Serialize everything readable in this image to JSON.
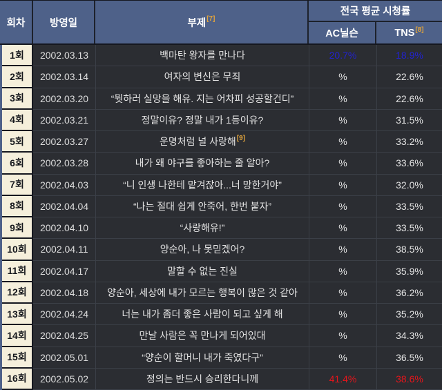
{
  "colors": {
    "header_bg": "#4e6189",
    "header_text": "#ffffff",
    "row_header_bg": "#f5efdb",
    "row_header_text": "#15171c",
    "cell_bg": "#2b2d32",
    "cell_text": "#e3e3e3",
    "footnote": "#e0a33c",
    "rating_blue": "#2222cf",
    "rating_red": "#e7151b"
  },
  "table": {
    "columns": {
      "episode": "회차",
      "air_date": "방영일",
      "subtitle": "부제",
      "subtitle_footnote": "[7]",
      "ratings_group": "전국 평균 시청률",
      "ratings_sub": [
        {
          "label": "AC닐슨",
          "footnote": ""
        },
        {
          "label": "TNS",
          "footnote": "[8]"
        }
      ]
    },
    "rows": [
      {
        "episode": "1회",
        "air_date": "2002.03.13",
        "subtitle": "백마탄 왕자를 만나다",
        "ac_nielsen": "20.7%",
        "tns": "18.9%",
        "highlight": "blue"
      },
      {
        "episode": "2회",
        "air_date": "2002.03.14",
        "subtitle": "여자의 변신은 무죄",
        "ac_nielsen": "%",
        "tns": "22.6%"
      },
      {
        "episode": "3회",
        "air_date": "2002.03.20",
        "subtitle": "“뭣하러 실망을 해유. 지는 어차피 성공할건디”",
        "ac_nielsen": "%",
        "tns": "22.6%"
      },
      {
        "episode": "4회",
        "air_date": "2002.03.21",
        "subtitle": "정말이유? 정말 내가 1등이유?",
        "ac_nielsen": "%",
        "tns": "31.5%"
      },
      {
        "episode": "5회",
        "air_date": "2002.03.27",
        "subtitle": "운명처럼 널 사랑해",
        "subtitle_footnote": "[9]",
        "ac_nielsen": "%",
        "tns": "33.2%"
      },
      {
        "episode": "6회",
        "air_date": "2002.03.28",
        "subtitle": "내가 왜 야구를 좋아하는 줄 알아?",
        "ac_nielsen": "%",
        "tns": "33.6%"
      },
      {
        "episode": "7회",
        "air_date": "2002.04.03",
        "subtitle": "“니 인생 나한테 맡겨잖아...너 망한거야”",
        "ac_nielsen": "%",
        "tns": "32.0%"
      },
      {
        "episode": "8회",
        "air_date": "2002.04.04",
        "subtitle": "“나는 절대 쉽게 안죽어, 한번 붙자”",
        "ac_nielsen": "%",
        "tns": "33.5%"
      },
      {
        "episode": "9회",
        "air_date": "2002.04.10",
        "subtitle": "“사랑해유!”",
        "ac_nielsen": "%",
        "tns": "33.5%"
      },
      {
        "episode": "10회",
        "air_date": "2002.04.11",
        "subtitle": "양순아, 나 못믿겠어?",
        "ac_nielsen": "%",
        "tns": "38.5%"
      },
      {
        "episode": "11회",
        "air_date": "2002.04.17",
        "subtitle": "말할 수 없는 진실",
        "ac_nielsen": "%",
        "tns": "35.9%"
      },
      {
        "episode": "12회",
        "air_date": "2002.04.18",
        "subtitle": "양순아, 세상에 내가 모르는 행복이 많은 것 같아",
        "ac_nielsen": "%",
        "tns": "36.2%"
      },
      {
        "episode": "13회",
        "air_date": "2002.04.24",
        "subtitle": "너는 내가 좀더 좋은 사람이 되고 싶게 해",
        "ac_nielsen": "%",
        "tns": "35.2%"
      },
      {
        "episode": "14회",
        "air_date": "2002.04.25",
        "subtitle": "만날 사람은 꼭 만나게 되어있대",
        "ac_nielsen": "%",
        "tns": "34.3%"
      },
      {
        "episode": "15회",
        "air_date": "2002.05.01",
        "subtitle": "“양순이 할머니 내가 죽였다구”",
        "ac_nielsen": "%",
        "tns": "36.5%"
      },
      {
        "episode": "16회",
        "air_date": "2002.05.02",
        "subtitle": "정의는 반드시 승리한다니께",
        "ac_nielsen": "41.4%",
        "tns": "38.6%",
        "highlight": "red"
      }
    ]
  }
}
